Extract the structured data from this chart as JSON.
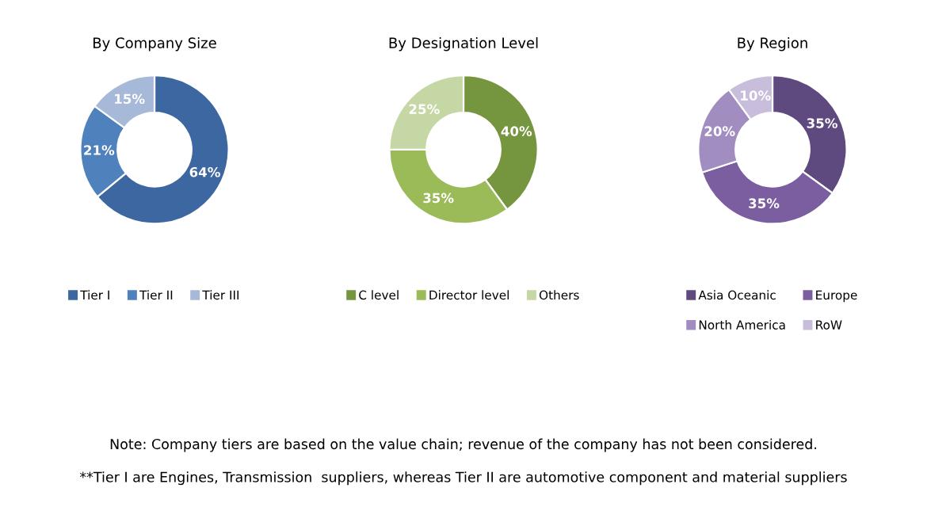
{
  "chart_data": [
    {
      "type": "donut",
      "title": "By Company Size",
      "categories": [
        "Tier I",
        "Tier II",
        "Tier III"
      ],
      "values": [
        64,
        21,
        15
      ],
      "value_labels": [
        "64%",
        "21%",
        "15%"
      ],
      "colors": [
        "#3d67a0",
        "#4f81bd",
        "#a7b9d9"
      ],
      "legend": "bottom",
      "annotations": [
        "Note: Company tiers are based on the value chain; revenue of the company has not been considered.",
        "**Tier I are Engines, Transmission  suppliers, whereas Tier II are automotive component and material suppliers"
      ]
    },
    {
      "type": "donut",
      "title": "By Designation Level",
      "categories": [
        "C level",
        "Director level",
        "Others"
      ],
      "values": [
        40,
        35,
        25
      ],
      "value_labels": [
        "40%",
        "35%",
        "25%"
      ],
      "colors": [
        "#76953f",
        "#9bbb59",
        "#c4d7a4"
      ],
      "legend": "bottom"
    },
    {
      "type": "donut",
      "title": "By Region",
      "categories": [
        "Asia Oceanic",
        "Europe",
        "North America",
        "RoW"
      ],
      "values": [
        35,
        35,
        20,
        10
      ],
      "value_labels": [
        "35%",
        "35%",
        "20%",
        "10%"
      ],
      "colors": [
        "#5f4a7f",
        "#7b5ea0",
        "#a18dbf",
        "#c8bddb"
      ],
      "legend": "bottom"
    }
  ]
}
